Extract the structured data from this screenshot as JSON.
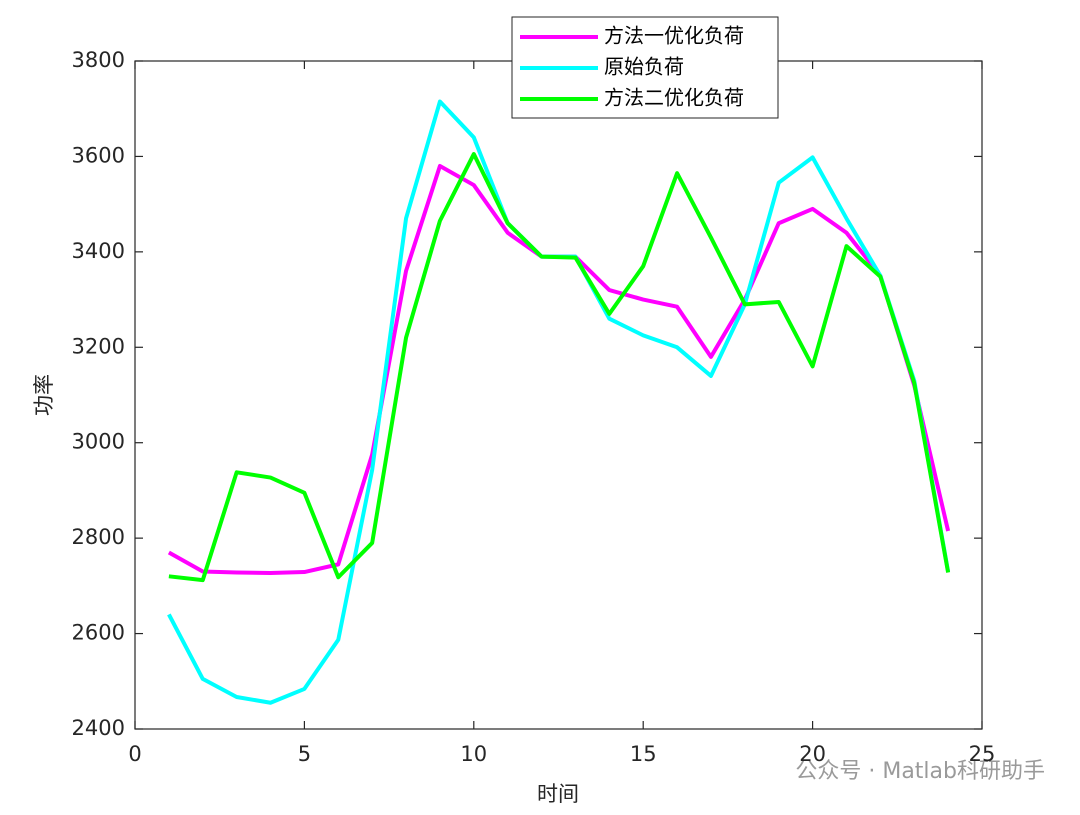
{
  "chart_data": {
    "type": "line",
    "xlabel": "时间",
    "ylabel": "功率",
    "x": [
      1,
      2,
      3,
      4,
      5,
      6,
      7,
      8,
      9,
      10,
      11,
      12,
      13,
      14,
      15,
      16,
      17,
      18,
      19,
      20,
      21,
      22,
      23,
      24
    ],
    "series": [
      {
        "name": "方法一优化负荷",
        "color": "#ff00ff",
        "values": [
          2770,
          2730,
          2728,
          2727,
          2729,
          2745,
          2975,
          3360,
          3580,
          3540,
          3440,
          3390,
          3390,
          3320,
          3300,
          3285,
          3180,
          3300,
          3460,
          3490,
          3440,
          3350,
          3120,
          2815
        ]
      },
      {
        "name": "原始负荷",
        "color": "#00ffff",
        "values": [
          2640,
          2505,
          2467,
          2455,
          2484,
          2587,
          2943,
          3470,
          3715,
          3640,
          3460,
          3390,
          3390,
          3260,
          3225,
          3200,
          3140,
          3290,
          3545,
          3598,
          3470,
          3350,
          3130,
          2730
        ]
      },
      {
        "name": "方法二优化负荷",
        "color": "#00ff00",
        "values": [
          2720,
          2712,
          2938,
          2927,
          2895,
          2718,
          2790,
          3220,
          3465,
          3605,
          3460,
          3390,
          3388,
          3270,
          3370,
          3565,
          3430,
          3290,
          3295,
          3160,
          3412,
          3348,
          3125,
          2728
        ]
      }
    ],
    "xlim": [
      0,
      25
    ],
    "xticks": [
      0,
      5,
      10,
      15,
      20,
      25
    ],
    "ylim": [
      2400,
      3800
    ],
    "yticks": [
      2400,
      2600,
      2800,
      3000,
      3200,
      3400,
      3600,
      3800
    ],
    "legend_position": "top",
    "watermark": "公众号 · Matlab科研助手"
  }
}
